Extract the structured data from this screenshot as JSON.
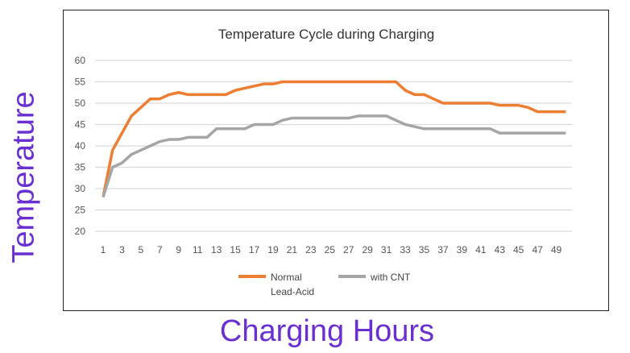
{
  "chart_data": {
    "type": "line",
    "title": "Temperature  Cycle during Charging",
    "xlabel": "Charging Hours",
    "ylabel": "Temperature",
    "x": [
      1,
      2,
      3,
      4,
      5,
      6,
      7,
      8,
      9,
      10,
      11,
      12,
      13,
      14,
      15,
      16,
      17,
      18,
      19,
      20,
      21,
      22,
      23,
      24,
      25,
      26,
      27,
      28,
      29,
      30,
      31,
      32,
      33,
      34,
      35,
      36,
      37,
      38,
      39,
      40,
      41,
      42,
      43,
      44,
      45,
      46,
      47,
      48,
      49,
      50
    ],
    "x_tick_labels": [
      "1",
      "3",
      "5",
      "7",
      "9",
      "11",
      "13",
      "15",
      "17",
      "19",
      "21",
      "23",
      "25",
      "27",
      "29",
      "31",
      "33",
      "35",
      "37",
      "39",
      "41",
      "43",
      "45",
      "47",
      "49"
    ],
    "ylim": [
      20,
      60
    ],
    "y_ticks": [
      20,
      25,
      30,
      35,
      40,
      45,
      50,
      55,
      60
    ],
    "grid": true,
    "legend_position": "bottom",
    "series": [
      {
        "name": "Normal Lead-Acid",
        "color": "#ed7d31",
        "values": [
          28,
          39,
          43,
          47,
          49,
          51,
          51,
          52,
          52.5,
          52,
          52,
          52,
          52,
          52,
          53,
          53.5,
          54,
          54.5,
          54.5,
          55,
          55,
          55,
          55,
          55,
          55,
          55,
          55,
          55,
          55,
          55,
          55,
          55,
          53,
          52,
          52,
          51,
          50,
          50,
          50,
          50,
          50,
          50,
          49.5,
          49.5,
          49.5,
          49,
          48,
          48,
          48,
          48
        ]
      },
      {
        "name": "with CNT",
        "color": "#a5a5a5",
        "values": [
          28,
          35,
          36,
          38,
          39,
          40,
          41,
          41.5,
          41.5,
          42,
          42,
          42,
          44,
          44,
          44,
          44,
          45,
          45,
          45,
          46,
          46.5,
          46.5,
          46.5,
          46.5,
          46.5,
          46.5,
          46.5,
          47,
          47,
          47,
          47,
          46,
          45,
          44.5,
          44,
          44,
          44,
          44,
          44,
          44,
          44,
          44,
          43,
          43,
          43,
          43,
          43,
          43,
          43,
          43
        ]
      }
    ],
    "legend": [
      {
        "line1": "Normal",
        "line2": "Lead-Acid"
      },
      {
        "line1": "with CNT",
        "line2": ""
      }
    ]
  }
}
